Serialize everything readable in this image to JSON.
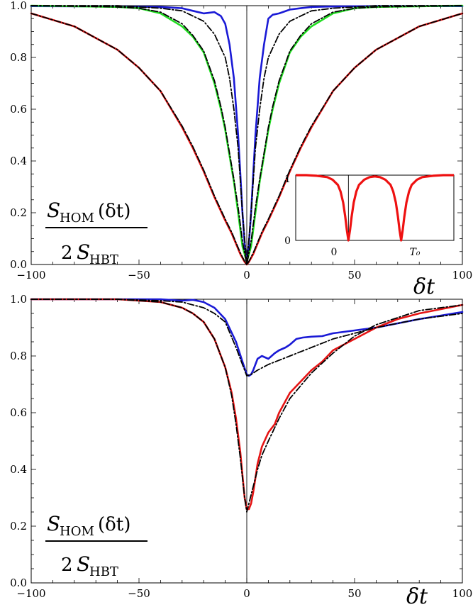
{
  "colors": {
    "blue": "#1a1ad6",
    "green": "#22dd22",
    "red": "#e51414",
    "fit": "#000000",
    "inset_red": "#ee1111"
  },
  "chart_data": [
    {
      "type": "line",
      "xlim": [
        -100,
        100
      ],
      "ylim": [
        0,
        1.0
      ],
      "x_ticks": [
        -100,
        -50,
        0,
        50,
        100
      ],
      "x_tick_labels": [
        "−100",
        "−50",
        "0",
        "50",
        "100"
      ],
      "y_ticks": [
        0,
        0.2,
        0.4,
        0.6,
        0.8,
        1.0
      ],
      "y_tick_labels": [
        "0.0",
        "0.2",
        "0.4",
        "0.6",
        "0.8",
        "1.0"
      ],
      "xlabel": "δt",
      "ylabel_fraction": {
        "numerator": {
          "S": "S",
          "sub": "HOM",
          "arg": "(δt)"
        },
        "denominator": {
          "coef": "2",
          "S": "S",
          "sub": "HBT"
        }
      },
      "series": [
        {
          "color": "blue",
          "style": "solid",
          "x": [
            -100,
            -60,
            -40,
            -30,
            -25,
            -20,
            -15,
            -12,
            -10,
            -8,
            -6,
            -4,
            -3,
            -2,
            -1,
            0,
            1,
            2,
            3,
            4,
            6,
            8,
            10,
            12,
            15,
            20,
            25,
            30,
            40,
            60,
            100
          ],
          "y": [
            0.998,
            0.997,
            0.995,
            0.99,
            0.98,
            0.97,
            0.975,
            0.96,
            0.93,
            0.85,
            0.72,
            0.5,
            0.35,
            0.2,
            0.08,
            0.01,
            0.08,
            0.2,
            0.35,
            0.5,
            0.72,
            0.85,
            0.95,
            0.965,
            0.97,
            0.985,
            0.99,
            0.995,
            0.997,
            0.998,
            0.998
          ]
        },
        {
          "color": "green",
          "style": "solid",
          "x": [
            -100,
            -60,
            -50,
            -40,
            -30,
            -25,
            -20,
            -15,
            -12,
            -10,
            -8,
            -6,
            -4,
            -2,
            0,
            2,
            4,
            6,
            8,
            10,
            12,
            15,
            20,
            25,
            30,
            40,
            50,
            60,
            100
          ],
          "y": [
            1.0,
            0.995,
            0.99,
            0.97,
            0.92,
            0.88,
            0.82,
            0.7,
            0.6,
            0.52,
            0.42,
            0.32,
            0.2,
            0.07,
            0.01,
            0.07,
            0.2,
            0.32,
            0.42,
            0.52,
            0.6,
            0.7,
            0.82,
            0.88,
            0.92,
            0.97,
            0.99,
            0.995,
            1.0
          ]
        },
        {
          "color": "red",
          "style": "solid",
          "x": [
            -100,
            -80,
            -60,
            -50,
            -40,
            -30,
            -25,
            -20,
            -15,
            -10,
            -7,
            -5,
            -3,
            -1,
            0,
            1,
            3,
            5,
            7,
            10,
            15,
            20,
            25,
            30,
            40,
            50,
            60,
            80,
            100
          ],
          "y": [
            0.97,
            0.92,
            0.83,
            0.76,
            0.67,
            0.53,
            0.45,
            0.36,
            0.26,
            0.17,
            0.12,
            0.08,
            0.04,
            0.01,
            0.0,
            0.01,
            0.04,
            0.08,
            0.12,
            0.17,
            0.26,
            0.36,
            0.45,
            0.53,
            0.67,
            0.76,
            0.83,
            0.92,
            0.97
          ]
        },
        {
          "color": "fit",
          "style": "dashdot",
          "x": [
            -100,
            -60,
            -40,
            -30,
            -20,
            -15,
            -10,
            -8,
            -6,
            -4,
            -2,
            0,
            2,
            4,
            6,
            8,
            10,
            15,
            20,
            30,
            40,
            60,
            100
          ],
          "y": [
            1.0,
            1.0,
            0.99,
            0.98,
            0.94,
            0.89,
            0.8,
            0.72,
            0.6,
            0.45,
            0.2,
            0.0,
            0.2,
            0.45,
            0.6,
            0.72,
            0.8,
            0.89,
            0.94,
            0.98,
            0.99,
            1.0,
            1.0
          ]
        },
        {
          "color": "fit",
          "style": "dashdot",
          "x": [
            -100,
            -60,
            -50,
            -40,
            -30,
            -25,
            -20,
            -15,
            -12,
            -10,
            -8,
            -6,
            -4,
            -2,
            0,
            2,
            4,
            6,
            8,
            10,
            12,
            15,
            20,
            25,
            30,
            40,
            50,
            60,
            100
          ],
          "y": [
            1.0,
            0.995,
            0.99,
            0.975,
            0.93,
            0.885,
            0.825,
            0.71,
            0.61,
            0.53,
            0.43,
            0.33,
            0.22,
            0.09,
            0.0,
            0.09,
            0.22,
            0.33,
            0.43,
            0.53,
            0.61,
            0.71,
            0.825,
            0.885,
            0.93,
            0.975,
            0.99,
            0.995,
            1.0
          ]
        },
        {
          "color": "fit",
          "style": "dashdot",
          "x": [
            -100,
            -80,
            -60,
            -50,
            -40,
            -30,
            -25,
            -20,
            -15,
            -10,
            -7,
            -5,
            -3,
            -1,
            0,
            1,
            3,
            5,
            7,
            10,
            15,
            20,
            25,
            30,
            40,
            50,
            60,
            80,
            100
          ],
          "y": [
            0.97,
            0.92,
            0.83,
            0.76,
            0.67,
            0.535,
            0.455,
            0.365,
            0.265,
            0.175,
            0.125,
            0.085,
            0.045,
            0.012,
            0.0,
            0.012,
            0.045,
            0.085,
            0.125,
            0.175,
            0.265,
            0.365,
            0.455,
            0.535,
            0.67,
            0.76,
            0.83,
            0.92,
            0.97
          ]
        }
      ],
      "inset": {
        "type": "line",
        "x_tick_labels": [
          "0",
          "T₀"
        ],
        "y_tick_labels": [
          "0",
          "1"
        ],
        "series": [
          {
            "color": "inset_red",
            "style": "solid",
            "x": [
              -1.0,
              -0.8,
              -0.6,
              -0.4,
              -0.3,
              -0.2,
              -0.15,
              -0.1,
              -0.06,
              -0.03,
              0,
              0.03,
              0.06,
              0.1,
              0.15,
              0.2,
              0.3,
              0.4,
              0.5,
              0.6,
              0.7,
              0.8,
              0.85,
              0.9,
              0.94,
              0.97,
              1.0,
              1.03,
              1.06,
              1.1,
              1.15,
              1.2,
              1.3,
              1.4,
              1.6,
              1.8,
              2.0
            ],
            "y": [
              1.0,
              1.0,
              0.99,
              0.97,
              0.93,
              0.85,
              0.75,
              0.58,
              0.36,
              0.16,
              0.0,
              0.16,
              0.36,
              0.58,
              0.75,
              0.85,
              0.93,
              0.97,
              0.98,
              0.97,
              0.93,
              0.85,
              0.75,
              0.58,
              0.36,
              0.16,
              0.0,
              0.16,
              0.36,
              0.58,
              0.75,
              0.85,
              0.93,
              0.97,
              0.99,
              1.0,
              1.0
            ]
          }
        ]
      }
    },
    {
      "type": "line",
      "xlim": [
        -100,
        100
      ],
      "ylim": [
        0,
        1.0
      ],
      "x_ticks": [
        -100,
        -50,
        0,
        50,
        100
      ],
      "x_tick_labels": [
        "−100",
        "−50",
        "0",
        "50",
        "100"
      ],
      "y_ticks": [
        0,
        0.2,
        0.4,
        0.6,
        0.8,
        1.0
      ],
      "y_tick_labels": [
        "0.0",
        "0.2",
        "0.4",
        "0.6",
        "0.8",
        "1.0"
      ],
      "xlabel": "δt",
      "ylabel_fraction": {
        "numerator": {
          "S": "S",
          "sub": "HOM",
          "arg": "(δt)"
        },
        "denominator": {
          "coef": "2",
          "S": "S",
          "sub": "HBT"
        }
      },
      "series": [
        {
          "color": "blue",
          "style": "solid",
          "x": [
            -100,
            -60,
            -40,
            -30,
            -25,
            -20,
            -15,
            -10,
            -5,
            -2,
            0,
            1,
            2,
            3,
            5,
            7,
            10,
            13,
            15,
            18,
            20,
            23,
            26,
            30,
            35,
            40,
            50,
            60,
            80,
            100
          ],
          "y": [
            1.0,
            1.0,
            1.0,
            0.995,
            0.998,
            0.99,
            0.97,
            0.93,
            0.85,
            0.78,
            0.735,
            0.73,
            0.735,
            0.75,
            0.79,
            0.8,
            0.79,
            0.81,
            0.82,
            0.83,
            0.84,
            0.86,
            0.865,
            0.868,
            0.87,
            0.88,
            0.89,
            0.9,
            0.93,
            0.955
          ]
        },
        {
          "color": "red",
          "style": "solid",
          "x": [
            -100,
            -60,
            -40,
            -30,
            -25,
            -20,
            -15,
            -10,
            -7,
            -5,
            -3,
            -2,
            -1,
            0,
            1,
            2,
            3,
            4,
            5,
            7,
            10,
            13,
            15,
            20,
            25,
            30,
            35,
            40,
            50,
            60,
            70,
            80,
            90,
            100
          ],
          "y": [
            1.0,
            1.0,
            0.99,
            0.97,
            0.95,
            0.92,
            0.86,
            0.76,
            0.67,
            0.58,
            0.46,
            0.38,
            0.3,
            0.26,
            0.26,
            0.28,
            0.32,
            0.37,
            0.42,
            0.48,
            0.53,
            0.56,
            0.6,
            0.67,
            0.71,
            0.75,
            0.78,
            0.82,
            0.86,
            0.9,
            0.93,
            0.95,
            0.965,
            0.98
          ]
        },
        {
          "color": "fit",
          "style": "dashdot",
          "x": [
            -100,
            -60,
            -40,
            -30,
            -20,
            -15,
            -10,
            -5,
            -2,
            0,
            2,
            5,
            10,
            20,
            30,
            40,
            50,
            60,
            80,
            100
          ],
          "y": [
            1.0,
            1.0,
            0.995,
            0.99,
            0.97,
            0.95,
            0.92,
            0.83,
            0.77,
            0.73,
            0.735,
            0.75,
            0.77,
            0.8,
            0.83,
            0.86,
            0.88,
            0.9,
            0.93,
            0.95
          ]
        },
        {
          "color": "fit",
          "style": "dashdot",
          "x": [
            -100,
            -60,
            -40,
            -30,
            -25,
            -20,
            -15,
            -10,
            -7,
            -5,
            -3,
            -1,
            0,
            1,
            3,
            5,
            7,
            10,
            15,
            20,
            30,
            40,
            50,
            60,
            80,
            100
          ],
          "y": [
            1.0,
            1.0,
            0.99,
            0.97,
            0.95,
            0.92,
            0.86,
            0.76,
            0.66,
            0.56,
            0.44,
            0.3,
            0.25,
            0.28,
            0.34,
            0.4,
            0.45,
            0.5,
            0.58,
            0.65,
            0.74,
            0.81,
            0.87,
            0.91,
            0.96,
            0.98
          ]
        }
      ]
    }
  ]
}
